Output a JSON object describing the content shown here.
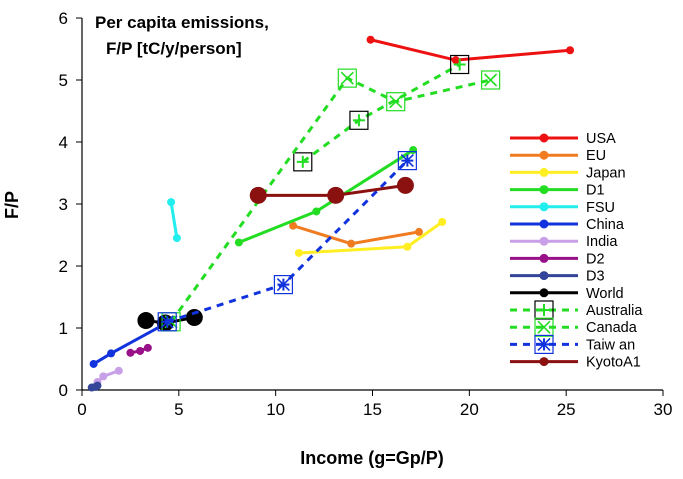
{
  "chart_data": {
    "type": "line",
    "title": "Per capita emissions,",
    "subtitle": "F/P [tC/y/person]",
    "xlabel": "Income (g=Gp/P)",
    "ylabel": "F/P",
    "xlim": [
      0,
      30
    ],
    "ylim": [
      0,
      6
    ],
    "x_ticks": [
      "0",
      "5",
      "10",
      "15",
      "20",
      "25",
      "30"
    ],
    "y_ticks": [
      "0",
      "1",
      "2",
      "3",
      "4",
      "5",
      "6"
    ],
    "grid": false,
    "legend_position": "right",
    "series": [
      {
        "name": "USA",
        "color": "#ee1111",
        "dash": false,
        "marker": "circle",
        "points": [
          [
            14.9,
            5.65
          ],
          [
            19.3,
            5.32
          ],
          [
            25.2,
            5.48
          ]
        ]
      },
      {
        "name": "EU",
        "color": "#f07b21",
        "dash": false,
        "marker": "circle",
        "points": [
          [
            10.9,
            2.65
          ],
          [
            13.9,
            2.36
          ],
          [
            17.4,
            2.55
          ]
        ]
      },
      {
        "name": "Japan",
        "color": "#ffee22",
        "dash": false,
        "marker": "circle",
        "points": [
          [
            11.2,
            2.21
          ],
          [
            16.8,
            2.31
          ],
          [
            18.6,
            2.71
          ]
        ]
      },
      {
        "name": "D1",
        "color": "#22dd22",
        "dash": false,
        "marker": "circle",
        "points": [
          [
            8.1,
            2.38
          ],
          [
            12.1,
            2.88
          ],
          [
            17.1,
            3.87
          ]
        ]
      },
      {
        "name": "FSU",
        "color": "#22eeee",
        "dash": false,
        "marker": "circle",
        "points": [
          [
            4.6,
            3.03
          ],
          [
            4.9,
            2.45
          ]
        ]
      },
      {
        "name": "China",
        "color": "#1133dd",
        "dash": false,
        "marker": "circle",
        "points": [
          [
            0.6,
            0.42
          ],
          [
            1.5,
            0.59
          ],
          [
            4.6,
            1.12
          ]
        ]
      },
      {
        "name": "India",
        "color": "#c8a0e8",
        "dash": false,
        "marker": "circle",
        "points": [
          [
            0.8,
            0.13
          ],
          [
            1.1,
            0.22
          ],
          [
            1.9,
            0.31
          ]
        ]
      },
      {
        "name": "D2",
        "color": "#991188",
        "dash": false,
        "marker": "circle",
        "points": [
          [
            2.5,
            0.6
          ],
          [
            3.0,
            0.63
          ],
          [
            3.4,
            0.68
          ]
        ]
      },
      {
        "name": "D3",
        "color": "#334499",
        "dash": false,
        "marker": "circle",
        "points": [
          [
            0.5,
            0.04
          ],
          [
            0.7,
            0.05
          ],
          [
            0.8,
            0.07
          ]
        ]
      },
      {
        "name": "World",
        "color": "#000000",
        "dash": false,
        "marker": "circle-large",
        "points": [
          [
            3.3,
            1.12
          ],
          [
            4.3,
            1.08
          ],
          [
            5.8,
            1.17
          ]
        ]
      },
      {
        "name": "Australia",
        "color": "#22dd22",
        "dash": true,
        "marker": "box-plus",
        "points": [
          [
            11.4,
            3.68
          ],
          [
            14.3,
            4.35
          ],
          [
            19.5,
            5.25
          ]
        ]
      },
      {
        "name": "Canada",
        "color": "#22dd22",
        "dash": true,
        "marker": "box-x",
        "points": [
          [
            4.6,
            1.1
          ],
          [
            13.7,
            5.03
          ],
          [
            16.2,
            4.65
          ],
          [
            21.1,
            5.0
          ]
        ]
      },
      {
        "name": "Taiw an",
        "color": "#1133dd",
        "dash": true,
        "marker": "box-asterisk",
        "points": [
          [
            4.4,
            1.1
          ],
          [
            10.4,
            1.7
          ],
          [
            16.8,
            3.7
          ]
        ]
      },
      {
        "name": "KyotoA1",
        "color": "#8b1010",
        "dash": false,
        "marker": "circle-large",
        "points": [
          [
            9.1,
            3.14
          ],
          [
            13.1,
            3.14
          ],
          [
            16.7,
            3.3
          ]
        ]
      }
    ]
  }
}
